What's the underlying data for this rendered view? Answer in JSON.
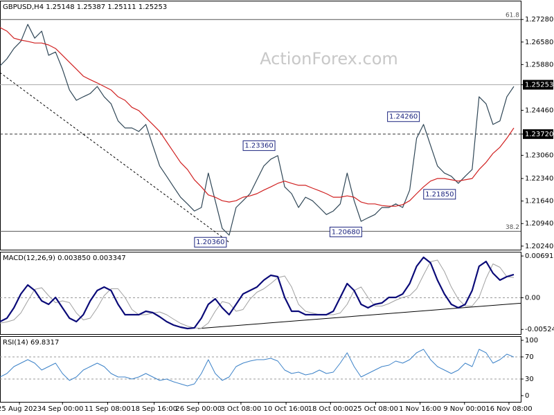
{
  "chart_data": [
    {
      "type": "line",
      "title": "GBPUSD,H4 1.25148 1.25387 1.25111 1.25253",
      "watermark": "ActionForex.com",
      "xlim": [
        0,
        75
      ],
      "ylim": [
        1.2015,
        1.278
      ],
      "yticks": [
        {
          "value": 1.2728,
          "label": "1.27280"
        },
        {
          "value": 1.2658,
          "label": "1.26580"
        },
        {
          "value": 1.2588,
          "label": "1.25880"
        },
        {
          "value": 1.25253,
          "label": "1.25253"
        },
        {
          "value": 1.2446,
          "label": "1.24460"
        },
        {
          "value": 1.2372,
          "label": "1.23720"
        },
        {
          "value": 1.2306,
          "label": "1.23060"
        },
        {
          "value": 1.2234,
          "label": "1.22340"
        },
        {
          "value": 1.2164,
          "label": "1.21640"
        },
        {
          "value": 1.2094,
          "label": "1.20940"
        },
        {
          "value": 1.2024,
          "label": "1.20240"
        }
      ],
      "series": [
        {
          "color": "#2f4656",
          "width": 1.2,
          "values": [
            1.2584,
            1.2606,
            1.2638,
            1.266,
            1.2713,
            1.267,
            1.2692,
            1.2617,
            1.2627,
            1.2574,
            1.2509,
            1.2477,
            1.2488,
            1.2498,
            1.252,
            1.2488,
            1.2466,
            1.2413,
            1.2391,
            1.2391,
            1.238,
            1.2402,
            1.2337,
            1.2273,
            1.2241,
            1.2208,
            1.2176,
            1.2155,
            1.2133,
            1.2144,
            1.2251,
            1.2165,
            1.2079,
            1.2058,
            1.2144,
            1.2165,
            1.2187,
            1.223,
            1.2273,
            1.2294,
            1.2305,
            1.2208,
            1.2187,
            1.2144,
            1.2176,
            1.2165,
            1.2144,
            1.2122,
            1.2133,
            1.2155,
            1.2251,
            1.2165,
            1.2101,
            1.2112,
            1.2122,
            1.2144,
            1.2144,
            1.2155,
            1.2144,
            1.2198,
            1.2359,
            1.2402,
            1.2337,
            1.2273,
            1.2251,
            1.2241,
            1.2219,
            1.2241,
            1.2262,
            1.2488,
            1.2466,
            1.2402,
            1.2413,
            1.2488,
            1.252
          ]
        },
        {
          "color": "#d02020",
          "width": 1.2,
          "values": [
            1.2703,
            1.2692,
            1.267,
            1.2664,
            1.266,
            1.2655,
            1.2655,
            1.2649,
            1.2638,
            1.2617,
            1.2595,
            1.2574,
            1.2552,
            1.2541,
            1.2531,
            1.252,
            1.2509,
            1.2488,
            1.2477,
            1.2455,
            1.2445,
            1.2423,
            1.2402,
            1.238,
            1.2348,
            1.2316,
            1.2284,
            1.2262,
            1.223,
            1.2208,
            1.2183,
            1.2176,
            1.2165,
            1.2161,
            1.2165,
            1.2176,
            1.218,
            1.2187,
            1.2198,
            1.2208,
            1.2219,
            1.2226,
            1.2219,
            1.2213,
            1.2213,
            1.2204,
            1.2196,
            1.2187,
            1.2176,
            1.2176,
            1.218,
            1.2176,
            1.2161,
            1.2155,
            1.2155,
            1.215,
            1.2148,
            1.2148,
            1.2153,
            1.2165,
            1.2187,
            1.2208,
            1.2226,
            1.2234,
            1.2234,
            1.223,
            1.2226,
            1.223,
            1.2234,
            1.2262,
            1.2284,
            1.2312,
            1.2331,
            1.2359,
            1.2391
          ]
        }
      ],
      "trendline": {
        "x": [
          0,
          33
        ],
        "values": [
          1.2563,
          1.2036
        ],
        "dashed": true
      },
      "price_lines": [
        {
          "value": 1.25253,
          "dashed": false
        },
        {
          "value": 1.2372,
          "dashed": true
        }
      ],
      "fib_levels": [
        {
          "label": "61.8",
          "value": 1.2728
        },
        {
          "label": "38.2",
          "value": 1.207
        }
      ],
      "annotations": [
        {
          "label": "1.20360",
          "x": 33,
          "value": 1.2036
        },
        {
          "label": "1.23360",
          "x": 40,
          "value": 1.2336
        },
        {
          "label": "1.20680",
          "x": 52.5,
          "value": 1.2068
        },
        {
          "label": "1.24260",
          "x": 60.8,
          "value": 1.2426
        },
        {
          "label": "1.21850",
          "x": 66,
          "value": 1.2185
        }
      ]
    },
    {
      "type": "line",
      "title": "MACD(12,26,9) 0.003850 0.003347",
      "xlim": [
        0,
        75
      ],
      "ylim": [
        -0.0059,
        0.0075
      ],
      "yticks": [
        0.006915,
        {
          "value": 0,
          "label": "0.00"
        },
        -0.005241
      ],
      "levels": [
        0
      ],
      "series": [
        {
          "color": "#a0a0a0",
          "width": 1,
          "values": [
            -0.0042,
            -0.004,
            -0.00367,
            -0.00252,
            -0.00052,
            0.00138,
            0.00166,
            0.00034,
            -0.00081,
            -0.00052,
            -0.0008,
            -0.00252,
            -0.00367,
            -0.00338,
            -0.00167,
            0.00034,
            0.00149,
            0.00149,
            6e-05,
            -0.00195,
            -0.00281,
            -0.00281,
            -0.00252,
            -0.00235,
            -0.00281,
            -0.00355,
            -0.00424,
            -0.0047,
            -0.00499,
            -0.00504,
            -0.00418,
            -0.00224,
            -0.00063,
            -0.00092,
            -0.00224,
            -0.00195,
            -0.00023,
            0.00092,
            0.00149,
            0.00235,
            0.00332,
            0.00361,
            0.00178,
            -0.00109,
            -0.00223,
            -0.00252,
            -0.00281,
            -0.00281,
            -0.00281,
            -0.00252,
            -0.00109,
            0.00121,
            0.00178,
            6e-05,
            -0.00138,
            -0.00138,
            -0.00098,
            -0.0004,
            6e-05,
            0.00035,
            0.00149,
            0.00378,
            0.00596,
            0.00624,
            0.00435,
            0.00178,
            -0.00023,
            -0.00138,
            -0.00138,
            6e-05,
            0.00321,
            0.00561,
            0.00504,
            0.00349,
            0.003347
          ]
        },
        {
          "color": "#0a0a78",
          "width": 2.2,
          "values": [
            -0.00395,
            -0.00338,
            -0.00166,
            0.00063,
            0.00212,
            0.0012,
            -0.00052,
            -0.00109,
            6e-05,
            -0.00166,
            -0.00338,
            -0.00395,
            -0.00281,
            -0.00052,
            0.0012,
            0.00177,
            0.0012,
            -0.00109,
            -0.00281,
            -0.00281,
            -0.00281,
            -0.00223,
            -0.00246,
            -0.00315,
            -0.00395,
            -0.00452,
            -0.00487,
            -0.0051,
            -0.00498,
            -0.00338,
            -0.00109,
            -0.00017,
            -0.00166,
            -0.00281,
            -0.00109,
            0.00063,
            0.0012,
            0.00177,
            0.00292,
            0.00372,
            0.00349,
            6e-05,
            -0.00223,
            -0.00223,
            -0.00281,
            -0.00281,
            -0.00281,
            -0.00281,
            -0.00223,
            6e-05,
            0.00235,
            0.0012,
            -0.00109,
            -0.00166,
            -0.00109,
            -0.00086,
            6e-05,
            6e-05,
            0.00063,
            0.00235,
            0.00521,
            0.0067,
            0.00578,
            0.00292,
            0.00063,
            -0.00109,
            -0.00166,
            -0.00109,
            0.0012,
            0.00521,
            0.00601,
            0.00406,
            0.00292,
            0.00349,
            0.00385
          ]
        }
      ],
      "trendline": {
        "x": [
          28.5,
          75
        ],
        "values": [
          -0.0051,
          -0.0009
        ],
        "dashed": false
      }
    },
    {
      "type": "line",
      "title": "RSI(14) 69.8317",
      "xlim": [
        0,
        75
      ],
      "ylim": [
        -11.25,
        107.5
      ],
      "yticks": [
        100,
        70,
        30,
        0
      ],
      "levels": [
        30,
        70
      ],
      "xticks": [
        {
          "value": 2.8,
          "label": "25 Aug 2023"
        },
        {
          "value": 9,
          "label": "4 Sep 00:00"
        },
        {
          "value": 15.5,
          "label": "11 Sep 08:00"
        },
        {
          "value": 22.2,
          "label": "18 Sep 16:00"
        },
        {
          "value": 28.6,
          "label": "26 Sep 00:00"
        },
        {
          "value": 34.7,
          "label": "3 Oct 08:00"
        },
        {
          "value": 41.2,
          "label": "10 Oct 16:00"
        },
        {
          "value": 47.6,
          "label": "18 Oct 00:00"
        },
        {
          "value": 54.1,
          "label": "25 Oct 08:00"
        },
        {
          "value": 60.5,
          "label": "1 Nov 16:00"
        },
        {
          "value": 66.9,
          "label": "9 Nov 00:00"
        },
        {
          "value": 73.3,
          "label": "16 Nov 08:00"
        }
      ],
      "series": [
        {
          "color": "#3c82c8",
          "width": 1,
          "values": [
            33.8,
            40,
            52.5,
            58.8,
            65,
            58.8,
            46.3,
            52.5,
            58.8,
            40,
            27.5,
            33.8,
            46.3,
            52.5,
            58.8,
            52.5,
            40,
            33.8,
            33.8,
            30,
            33.8,
            40,
            33.8,
            27.5,
            30,
            25,
            21.3,
            17.5,
            21.3,
            40,
            65,
            40,
            27.5,
            33.8,
            52.5,
            58.8,
            62.5,
            65,
            65,
            67.5,
            62.5,
            46.3,
            40,
            42.5,
            37.5,
            40,
            46.3,
            40,
            42.5,
            58.8,
            77.5,
            52.5,
            33.8,
            40,
            46.3,
            52.5,
            55,
            62.5,
            58.8,
            65,
            77.5,
            83.8,
            65,
            52.5,
            46.3,
            40,
            46.3,
            58.8,
            52.5,
            83.8,
            77.5,
            58.8,
            65,
            75,
            69.8
          ]
        }
      ]
    }
  ]
}
